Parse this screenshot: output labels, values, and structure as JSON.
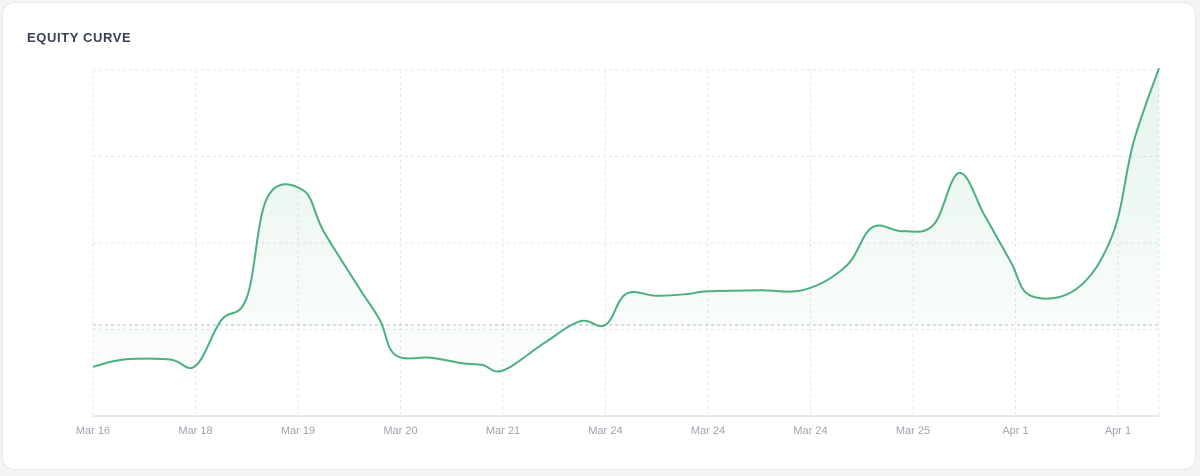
{
  "card": {
    "title": "EQUITY CURVE"
  },
  "colors": {
    "line": "#4caf7d",
    "fill": "#4caf7d",
    "grid": "#e5e7eb",
    "baseline": "#b8bcc3",
    "tick_text": "#9ca3af"
  },
  "chart_data": {
    "type": "area",
    "title": "EQUITY CURVE",
    "xlabel": "",
    "ylabel": "",
    "grid": true,
    "baseline": 0,
    "ylim": [
      -100,
      280
    ],
    "x_ticks": [
      {
        "index": 0,
        "label": "Mar 16"
      },
      {
        "index": 10,
        "label": "Mar 18"
      },
      {
        "index": 20,
        "label": "Mar 19"
      },
      {
        "index": 30,
        "label": "Mar 20"
      },
      {
        "index": 40,
        "label": "Mar 21"
      },
      {
        "index": 50,
        "label": "Mar 24"
      },
      {
        "index": 60,
        "label": "Mar 24"
      },
      {
        "index": 70,
        "label": "Mar 24"
      },
      {
        "index": 80,
        "label": "Mar 25"
      },
      {
        "index": 90,
        "label": "Apr 1"
      },
      {
        "index": 100,
        "label": "Apr 1"
      }
    ],
    "x_max_index": 104,
    "series": [
      {
        "points": [
          {
            "i": 0,
            "y": -46
          },
          {
            "i": 3,
            "y": -38
          },
          {
            "i": 7.5,
            "y": -38
          },
          {
            "i": 10,
            "y": -45
          },
          {
            "i": 12.5,
            "y": 5
          },
          {
            "i": 15,
            "y": 30
          },
          {
            "i": 17,
            "y": 140
          },
          {
            "i": 20.5,
            "y": 148
          },
          {
            "i": 22.5,
            "y": 103
          },
          {
            "i": 26,
            "y": 40
          },
          {
            "i": 28,
            "y": 5
          },
          {
            "i": 29.5,
            "y": -33
          },
          {
            "i": 33,
            "y": -36
          },
          {
            "i": 36,
            "y": -42
          },
          {
            "i": 38,
            "y": -44
          },
          {
            "i": 40,
            "y": -50
          },
          {
            "i": 44,
            "y": -20
          },
          {
            "i": 47.5,
            "y": 4
          },
          {
            "i": 50,
            "y": 0
          },
          {
            "i": 52,
            "y": 34
          },
          {
            "i": 55,
            "y": 32
          },
          {
            "i": 58,
            "y": 34
          },
          {
            "i": 60,
            "y": 37
          },
          {
            "i": 65,
            "y": 38
          },
          {
            "i": 69.5,
            "y": 39
          },
          {
            "i": 73.5,
            "y": 65
          },
          {
            "i": 76,
            "y": 107
          },
          {
            "i": 79,
            "y": 103
          },
          {
            "i": 82,
            "y": 110
          },
          {
            "i": 84.5,
            "y": 167
          },
          {
            "i": 87,
            "y": 120
          },
          {
            "i": 89.5,
            "y": 70
          },
          {
            "i": 91.5,
            "y": 32
          },
          {
            "i": 96,
            "y": 40
          },
          {
            "i": 99.5,
            "y": 100
          },
          {
            "i": 101.5,
            "y": 200
          },
          {
            "i": 104,
            "y": 282
          }
        ]
      }
    ]
  }
}
